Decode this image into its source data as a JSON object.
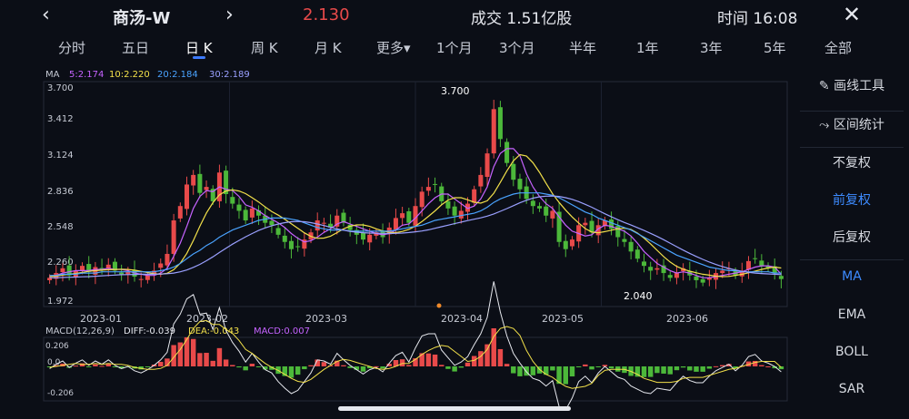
{
  "header": {
    "back_icon": "chevron-left-icon",
    "title": "商汤-W",
    "forward_icon": "chevron-right-icon",
    "price": "2.130",
    "volume": "成交 1.51亿股",
    "time": "时间 16:08",
    "close_icon": "close-icon"
  },
  "periods": [
    {
      "label": "分时"
    },
    {
      "label": "五日"
    },
    {
      "label": "日 K"
    },
    {
      "label": "周 K"
    },
    {
      "label": "月 K"
    },
    {
      "label": "更多▾"
    },
    {
      "label": "1个月"
    },
    {
      "label": "3个月"
    },
    {
      "label": "半年"
    },
    {
      "label": "1年"
    },
    {
      "label": "3年"
    },
    {
      "label": "5年"
    },
    {
      "label": "全部"
    }
  ],
  "active_period": "日 K",
  "ma_legend": {
    "label": "MA",
    "items": [
      {
        "text": "5:2.174",
        "color": "#c663ff"
      },
      {
        "text": "10:2.220",
        "color": "#f2e04a"
      },
      {
        "text": "20:2.184",
        "color": "#4aa3ff"
      },
      {
        "text": "30:2.189",
        "color": "#9aa0ff"
      }
    ]
  },
  "macd_legend": {
    "label": "MACD(12,26,9)",
    "diff": "DIFF:-0.039",
    "dea": "DEA:-0.043",
    "macd": "MACD:0.007"
  },
  "side_menu": [
    {
      "label": "画线工具",
      "icon": "pen-icon"
    },
    {
      "label": "区间统计",
      "icon": "range-icon"
    },
    {
      "label": "不复权"
    },
    {
      "label": "前复权",
      "active": true
    },
    {
      "label": "后复权"
    },
    {
      "label": "MA",
      "active": true
    },
    {
      "label": "EMA"
    },
    {
      "label": "BOLL"
    },
    {
      "label": "SAR"
    }
  ],
  "colors": {
    "up": "#e84a4a",
    "down": "#4cb83a",
    "accent": "#3d8bff",
    "background": "#0b0e16"
  },
  "chart_data": {
    "type": "candlestick",
    "y_ticks": [
      "3.700",
      "3.412",
      "3.124",
      "2.836",
      "2.548",
      "2.260",
      "1.972"
    ],
    "ylim": [
      1.972,
      3.7
    ],
    "x_ticks": [
      "2023-01",
      "2023-02",
      "2023-03",
      "2023-04",
      "2023-05",
      "2023-06"
    ],
    "annotations": {
      "high": "3.700",
      "low": "2.040"
    },
    "close_series": [
      2.14,
      2.18,
      2.22,
      2.16,
      2.2,
      2.24,
      2.19,
      2.23,
      2.21,
      2.25,
      2.2,
      2.17,
      2.19,
      2.15,
      2.13,
      2.16,
      2.2,
      2.26,
      2.34,
      2.62,
      2.74,
      2.92,
      3.0,
      2.85,
      2.9,
      2.78,
      3.02,
      2.84,
      2.76,
      2.7,
      2.62,
      2.72,
      2.66,
      2.6,
      2.58,
      2.5,
      2.44,
      2.38,
      2.4,
      2.46,
      2.52,
      2.62,
      2.6,
      2.56,
      2.66,
      2.6,
      2.54,
      2.5,
      2.46,
      2.5,
      2.52,
      2.48,
      2.56,
      2.64,
      2.68,
      2.6,
      2.74,
      2.86,
      2.9,
      2.92,
      2.78,
      2.72,
      2.66,
      2.7,
      2.76,
      2.88,
      3.0,
      3.18,
      3.55,
      3.3,
      3.1,
      2.96,
      2.88,
      2.8,
      2.74,
      2.72,
      2.66,
      2.7,
      2.44,
      2.38,
      2.46,
      2.58,
      2.6,
      2.52,
      2.58,
      2.62,
      2.55,
      2.48,
      2.44,
      2.36,
      2.3,
      2.24,
      2.2,
      2.22,
      2.18,
      2.14,
      2.18,
      2.22,
      2.16,
      2.12,
      2.1,
      2.14,
      2.18,
      2.2,
      2.22,
      2.16,
      2.2,
      2.28,
      2.3,
      2.24,
      2.22,
      2.18,
      2.13
    ],
    "ma5_series": [
      2.15,
      2.16,
      2.18,
      2.19,
      2.2,
      2.2,
      2.2,
      2.21,
      2.21,
      2.22,
      2.21,
      2.21,
      2.2,
      2.18,
      2.17,
      2.16,
      2.16,
      2.18,
      2.22,
      2.32,
      2.43,
      2.57,
      2.72,
      2.82,
      2.87,
      2.86,
      2.9,
      2.88,
      2.87,
      2.82,
      2.75,
      2.73,
      2.7,
      2.66,
      2.63,
      2.6,
      2.56,
      2.51,
      2.47,
      2.44,
      2.45,
      2.48,
      2.52,
      2.55,
      2.59,
      2.61,
      2.59,
      2.57,
      2.55,
      2.53,
      2.51,
      2.5,
      2.51,
      2.54,
      2.58,
      2.59,
      2.64,
      2.7,
      2.76,
      2.81,
      2.84,
      2.84,
      2.8,
      2.76,
      2.72,
      2.74,
      2.8,
      2.9,
      3.07,
      3.18,
      3.22,
      3.22,
      3.16,
      3.01,
      2.9,
      2.82,
      2.76,
      2.72,
      2.65,
      2.58,
      2.53,
      2.51,
      2.49,
      2.5,
      2.55,
      2.58,
      2.57,
      2.55,
      2.53,
      2.49,
      2.43,
      2.36,
      2.31,
      2.26,
      2.23,
      2.2,
      2.18,
      2.19,
      2.18,
      2.16,
      2.14,
      2.14,
      2.15,
      2.16,
      2.17,
      2.18,
      2.19,
      2.21,
      2.23,
      2.24,
      2.24,
      2.23,
      2.17
    ],
    "ma20_series": [
      2.16,
      2.16,
      2.17,
      2.17,
      2.17,
      2.18,
      2.18,
      2.18,
      2.19,
      2.19,
      2.19,
      2.19,
      2.19,
      2.19,
      2.19,
      2.19,
      2.19,
      2.2,
      2.21,
      2.23,
      2.26,
      2.3,
      2.34,
      2.37,
      2.41,
      2.44,
      2.48,
      2.51,
      2.54,
      2.56,
      2.58,
      2.6,
      2.62,
      2.63,
      2.64,
      2.64,
      2.64,
      2.63,
      2.62,
      2.6,
      2.58,
      2.56,
      2.55,
      2.54,
      2.54,
      2.54,
      2.53,
      2.53,
      2.53,
      2.53,
      2.53,
      2.53,
      2.53,
      2.54,
      2.55,
      2.56,
      2.57,
      2.58,
      2.6,
      2.62,
      2.63,
      2.64,
      2.65,
      2.66,
      2.67,
      2.68,
      2.7,
      2.73,
      2.77,
      2.8,
      2.82,
      2.84,
      2.85,
      2.85,
      2.85,
      2.85,
      2.84,
      2.83,
      2.81,
      2.78,
      2.75,
      2.72,
      2.69,
      2.67,
      2.64,
      2.62,
      2.6,
      2.58,
      2.56,
      2.54,
      2.51,
      2.48,
      2.45,
      2.42,
      2.39,
      2.36,
      2.33,
      2.31,
      2.29,
      2.27,
      2.25,
      2.23,
      2.22,
      2.21,
      2.2,
      2.2,
      2.19,
      2.19,
      2.19,
      2.19,
      2.19,
      2.18,
      2.18
    ]
  },
  "macd_axis": [
    "0.206",
    "0.0",
    "-0.206"
  ]
}
